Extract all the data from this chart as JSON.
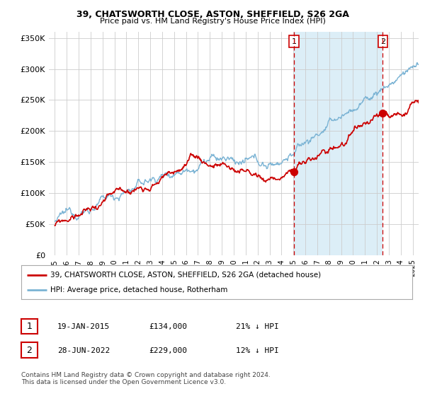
{
  "title": "39, CHATSWORTH CLOSE, ASTON, SHEFFIELD, S26 2GA",
  "subtitle": "Price paid vs. HM Land Registry's House Price Index (HPI)",
  "ylabel_ticks": [
    "£0",
    "£50K",
    "£100K",
    "£150K",
    "£200K",
    "£250K",
    "£300K",
    "£350K"
  ],
  "ytick_values": [
    0,
    50000,
    100000,
    150000,
    200000,
    250000,
    300000,
    350000
  ],
  "ylim": [
    0,
    360000
  ],
  "xlim_start": 1994.5,
  "xlim_end": 2025.5,
  "hpi_color": "#7ab3d4",
  "hpi_fill_color": "#dceef7",
  "price_color": "#cc0000",
  "marker1_x": 2015.05,
  "marker1_y": 134000,
  "marker2_x": 2022.5,
  "marker2_y": 229000,
  "vline_color": "#cc0000",
  "legend_line1": "39, CHATSWORTH CLOSE, ASTON, SHEFFIELD, S26 2GA (detached house)",
  "legend_line2": "HPI: Average price, detached house, Rotherham",
  "table_row1": [
    "1",
    "19-JAN-2015",
    "£134,000",
    "21% ↓ HPI"
  ],
  "table_row2": [
    "2",
    "28-JUN-2022",
    "£229,000",
    "12% ↓ HPI"
  ],
  "footnote1": "Contains HM Land Registry data © Crown copyright and database right 2024.",
  "footnote2": "This data is licensed under the Open Government Licence v3.0.",
  "background_color": "#ffffff",
  "grid_color": "#cccccc"
}
